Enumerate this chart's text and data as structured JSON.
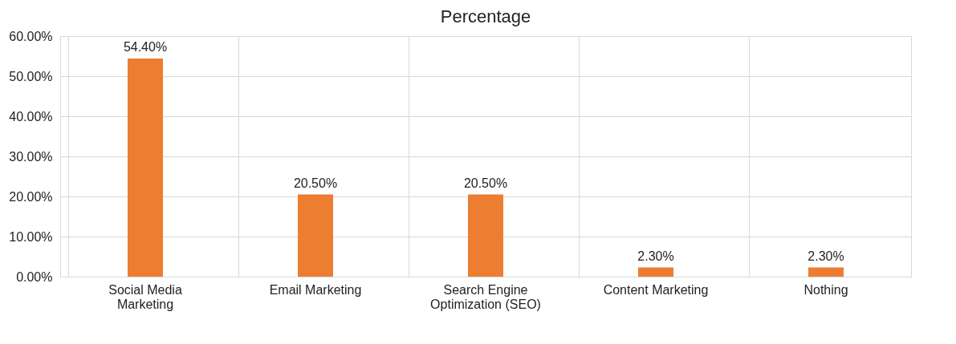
{
  "chart_data": {
    "type": "bar",
    "title": "Percentage",
    "categories": [
      "Social Media Marketing",
      "Email Marketing",
      "Search Engine Optimization (SEO)",
      "Content Marketing",
      "Nothing"
    ],
    "values": [
      54.4,
      20.5,
      20.5,
      2.3,
      2.3
    ],
    "color": "#ed7d31",
    "value_labels": [
      "54.40%",
      "20.50%",
      "20.50%",
      "2.30%",
      "2.30%"
    ],
    "ylim": [
      0,
      60
    ],
    "yticks": [
      {
        "value": 0,
        "label": "0.00%"
      },
      {
        "value": 10,
        "label": "10.00%"
      },
      {
        "value": 20,
        "label": "20.00%"
      },
      {
        "value": 30,
        "label": "30.00%"
      },
      {
        "value": 40,
        "label": "40.00%"
      },
      {
        "value": 50,
        "label": "50.00%"
      },
      {
        "value": 60,
        "label": "60.00%"
      }
    ],
    "grid": true
  }
}
